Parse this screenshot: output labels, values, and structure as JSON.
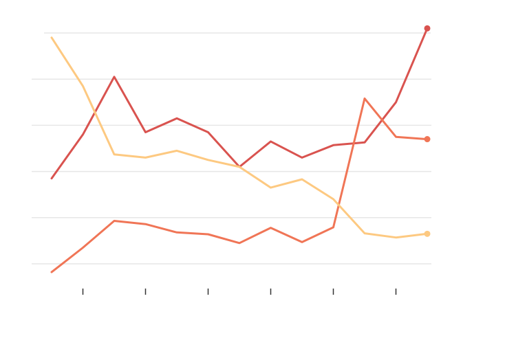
{
  "chart_data": {
    "type": "line",
    "title": "",
    "xlabel": "",
    "ylabel": "",
    "x": [
      0,
      1,
      2,
      3,
      4,
      5,
      6,
      7,
      8,
      9,
      10,
      11,
      12
    ],
    "xlim": [
      0,
      12
    ],
    "ylim": [
      0,
      5
    ],
    "x_ticks": [
      1,
      3,
      5,
      7,
      9,
      11
    ],
    "y_gridlines": [
      0,
      1,
      2,
      3,
      4,
      5
    ],
    "grid": true,
    "legend": "none",
    "series": [
      {
        "key": "dark-red",
        "color": "#d9534f",
        "values": [
          1.85,
          2.8,
          4.05,
          2.85,
          3.15,
          2.85,
          2.1,
          2.65,
          2.3,
          2.57,
          2.63,
          3.5,
          5.1
        ],
        "end_marker": true
      },
      {
        "key": "orange",
        "color": "#f07556",
        "values": [
          -0.18,
          0.35,
          0.93,
          0.86,
          0.68,
          0.64,
          0.45,
          0.78,
          0.47,
          0.79,
          3.58,
          2.75,
          2.7
        ],
        "end_marker": true
      },
      {
        "key": "light-orange",
        "color": "#fdc981",
        "values": [
          4.9,
          3.85,
          2.37,
          2.3,
          2.45,
          2.25,
          2.1,
          1.65,
          1.83,
          1.4,
          0.66,
          0.57,
          0.65
        ],
        "end_marker": true
      }
    ]
  }
}
